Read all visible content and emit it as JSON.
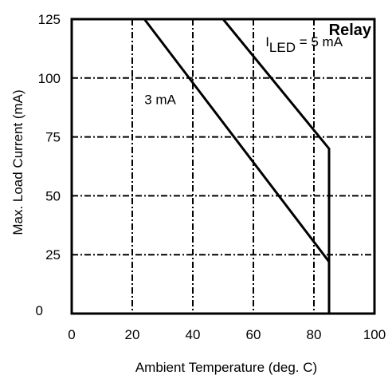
{
  "chart_data": {
    "type": "line",
    "title": "Relay",
    "xlabel": "Ambient Temperature (deg. C)",
    "ylabel": "Max. Load Current (mA)",
    "xlim": [
      0,
      100
    ],
    "ylim": [
      0,
      125
    ],
    "xticks": [
      "0",
      "20",
      "40",
      "60",
      "80",
      "100"
    ],
    "yticks": [
      "0",
      "25",
      "50",
      "75",
      "100",
      "125"
    ],
    "grid": true,
    "series": [
      {
        "x": [
          0,
          50,
          85,
          85
        ],
        "y": [
          125,
          125,
          70,
          0
        ]
      },
      {
        "x": [
          0,
          24,
          85,
          85
        ],
        "y": [
          125,
          125,
          22,
          0
        ]
      }
    ],
    "annotations": {
      "led_5ma": {
        "symbol": "I",
        "subscript": "LED",
        "rest": " = 5 mA"
      },
      "led_3ma": "3 mA"
    }
  }
}
